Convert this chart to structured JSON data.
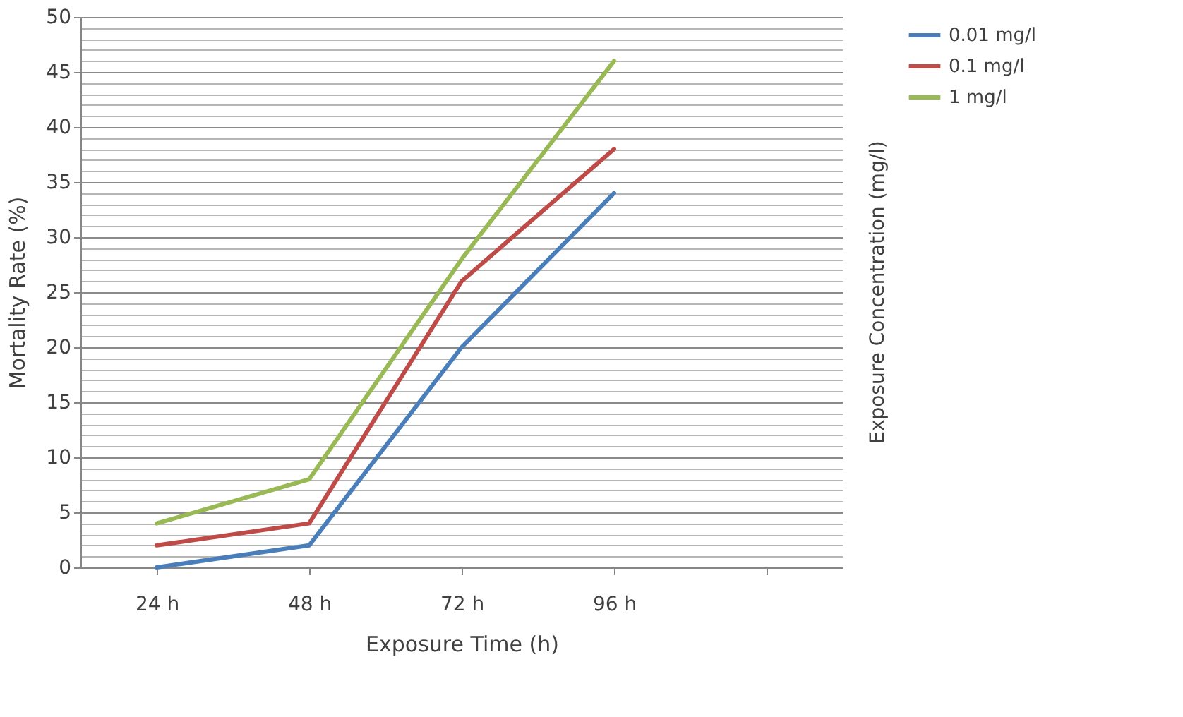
{
  "chart_data": {
    "type": "line",
    "xlabel": "Exposure Time (h)",
    "ylabel": "Mortality Rate (%)",
    "legend_title": "Exposure Concentration (mg/l)",
    "categories": [
      "24 h",
      "48 h",
      "72 h",
      "96 h",
      null
    ],
    "series": [
      {
        "name": "0.01 mg/l",
        "color": "#4a7ebb",
        "values": [
          0,
          2,
          20,
          34,
          null
        ]
      },
      {
        "name": "0.1 mg/l",
        "color": "#be4b48",
        "values": [
          2,
          4,
          26,
          38,
          null
        ]
      },
      {
        "name": "1 mg/l",
        "color": "#98b954",
        "values": [
          4,
          8,
          28,
          46,
          null
        ]
      }
    ],
    "ylim": [
      0,
      50
    ],
    "yticks": [
      0,
      {
        "value": 1,
        "label": null
      },
      {
        "value": 2,
        "label": null
      },
      {
        "value": 3,
        "label": null
      },
      {
        "value": 4,
        "label": null
      },
      5,
      {
        "value": 6,
        "label": null
      },
      {
        "value": 7,
        "label": null
      },
      {
        "value": 8,
        "label": null
      },
      {
        "value": 9,
        "label": null
      },
      10,
      {
        "value": 11,
        "label": null
      },
      {
        "value": 12,
        "label": null
      },
      {
        "value": 13,
        "label": null
      },
      {
        "value": 14,
        "label": null
      },
      15,
      {
        "value": 16,
        "label": null
      },
      {
        "value": 17,
        "label": null
      },
      {
        "value": 18,
        "label": null
      },
      {
        "value": 19,
        "label": null
      },
      20,
      {
        "value": 21,
        "label": null
      },
      {
        "value": 22,
        "label": null
      },
      {
        "value": 23,
        "label": null
      },
      {
        "value": 24,
        "label": null
      },
      25,
      {
        "value": 26,
        "label": null
      },
      {
        "value": 27,
        "label": null
      },
      {
        "value": 28,
        "label": null
      },
      {
        "value": 29,
        "label": null
      },
      30,
      {
        "value": 31,
        "label": null
      },
      {
        "value": 32,
        "label": null
      },
      {
        "value": 33,
        "label": null
      },
      {
        "value": 34,
        "label": null
      },
      35,
      {
        "value": 36,
        "label": null
      },
      {
        "value": 37,
        "label": null
      },
      {
        "value": 38,
        "label": null
      },
      {
        "value": 39,
        "label": null
      },
      40,
      {
        "value": 41,
        "label": null
      },
      {
        "value": 42,
        "label": null
      },
      {
        "value": 43,
        "label": null
      },
      {
        "value": 44,
        "label": null
      },
      45,
      {
        "value": 46,
        "label": null
      },
      {
        "value": 47,
        "label": null
      },
      {
        "value": 48,
        "label": null
      },
      {
        "value": 49,
        "label": null
      },
      50
    ],
    "grid": "y",
    "legend": "right",
    "marker": "none",
    "line_style": "solid"
  }
}
